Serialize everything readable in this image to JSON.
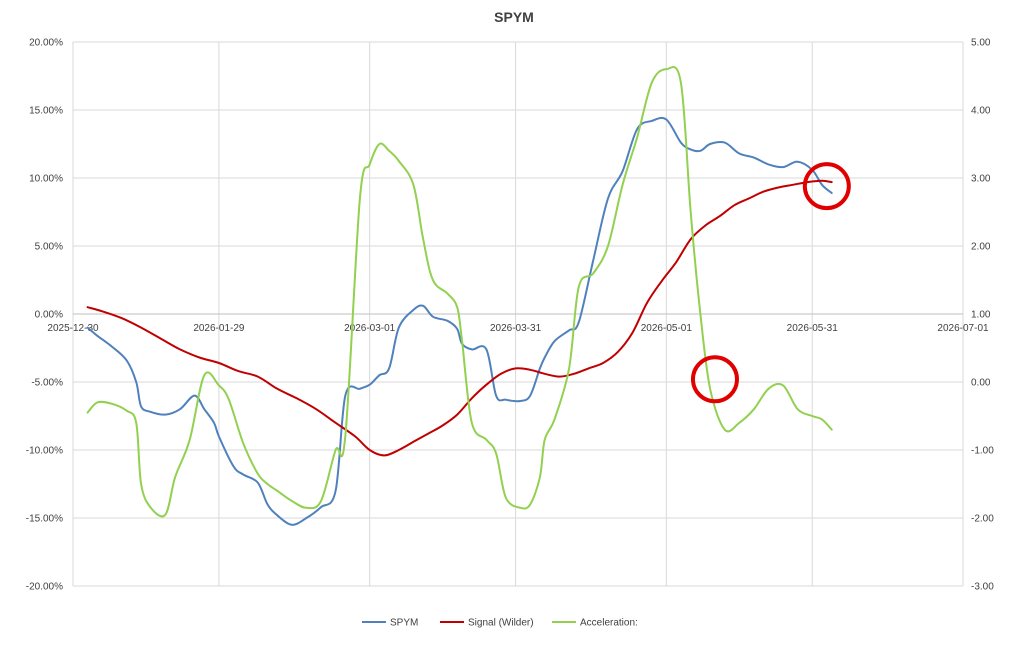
{
  "chart_data": {
    "type": "line",
    "title": "SPYM",
    "x_ticks": [
      "2025-12-30",
      "2026-01-29",
      "2026-03-01",
      "2026-03-31",
      "2026-05-01",
      "2026-05-31",
      "2026-07-01"
    ],
    "xlim": [
      "2025-12-30",
      "2026-07-01"
    ],
    "y_left": {
      "ylim": [
        -0.2,
        0.2
      ],
      "ticks": [
        "20.00%",
        "15.00%",
        "10.00%",
        "5.00%",
        "0.00%",
        "-5.00%",
        "-10.00%",
        "-15.00%",
        "-20.00%"
      ]
    },
    "y_right": {
      "ylim": [
        -3.0,
        5.0
      ],
      "ticks": [
        "5.00",
        "4.00",
        "3.00",
        "2.00",
        "1.00",
        "0.00",
        "-1.00",
        "-2.00",
        "-3.00"
      ]
    },
    "grid": "horizontal",
    "legend": "bottom",
    "series": [
      {
        "name": "SPYM",
        "axis": "left",
        "color": "#4F81BD",
        "x": [
          "2026-01-02",
          "2026-01-04",
          "2026-01-07",
          "2026-01-10",
          "2026-01-12",
          "2026-01-13",
          "2026-01-15",
          "2026-01-18",
          "2026-01-21",
          "2026-01-24",
          "2026-01-26",
          "2026-01-28",
          "2026-01-29",
          "2026-02-01",
          "2026-02-03",
          "2026-02-06",
          "2026-02-08",
          "2026-02-10",
          "2026-02-13",
          "2026-02-16",
          "2026-02-19",
          "2026-02-22",
          "2026-02-24",
          "2026-02-27",
          "2026-03-01",
          "2026-03-03",
          "2026-03-05",
          "2026-03-07",
          "2026-03-10",
          "2026-03-12",
          "2026-03-14",
          "2026-03-17",
          "2026-03-19",
          "2026-03-20",
          "2026-03-22",
          "2026-03-25",
          "2026-03-27",
          "2026-03-29",
          "2026-04-01",
          "2026-04-03",
          "2026-04-05",
          "2026-04-06",
          "2026-04-08",
          "2026-04-11",
          "2026-04-13",
          "2026-04-16",
          "2026-04-19",
          "2026-04-22",
          "2026-04-25",
          "2026-04-28",
          "2026-05-01",
          "2026-05-04",
          "2026-05-06",
          "2026-05-08",
          "2026-05-10",
          "2026-05-13",
          "2026-05-16",
          "2026-05-19",
          "2026-05-22",
          "2026-05-25",
          "2026-05-28",
          "2026-05-31",
          "2026-06-02",
          "2026-06-04"
        ],
        "values": [
          -0.01,
          -0.016,
          -0.024,
          -0.034,
          -0.05,
          -0.068,
          -0.072,
          -0.074,
          -0.07,
          -0.06,
          -0.07,
          -0.08,
          -0.09,
          -0.112,
          -0.118,
          -0.124,
          -0.14,
          -0.148,
          -0.155,
          -0.15,
          -0.142,
          -0.13,
          -0.06,
          -0.055,
          -0.052,
          -0.045,
          -0.04,
          -0.01,
          0.003,
          0.006,
          -0.002,
          -0.005,
          -0.011,
          -0.022,
          -0.026,
          -0.026,
          -0.06,
          -0.063,
          -0.064,
          -0.06,
          -0.04,
          -0.032,
          -0.02,
          -0.012,
          -0.006,
          0.04,
          0.085,
          0.105,
          0.136,
          0.142,
          0.143,
          0.126,
          0.121,
          0.12,
          0.125,
          0.126,
          0.118,
          0.115,
          0.11,
          0.108,
          0.112,
          0.106,
          0.095,
          0.089
        ]
      },
      {
        "name": "Signal (Wilder)",
        "axis": "left",
        "color": "#C00000",
        "x": [
          "2026-01-02",
          "2026-01-05",
          "2026-01-09",
          "2026-01-13",
          "2026-01-17",
          "2026-01-21",
          "2026-01-25",
          "2026-01-29",
          "2026-02-02",
          "2026-02-06",
          "2026-02-10",
          "2026-02-14",
          "2026-02-18",
          "2026-02-22",
          "2026-02-26",
          "2026-03-01",
          "2026-03-04",
          "2026-03-07",
          "2026-03-10",
          "2026-03-13",
          "2026-03-16",
          "2026-03-19",
          "2026-03-22",
          "2026-03-25",
          "2026-03-28",
          "2026-03-31",
          "2026-04-03",
          "2026-04-06",
          "2026-04-09",
          "2026-04-12",
          "2026-04-15",
          "2026-04-18",
          "2026-04-21",
          "2026-04-24",
          "2026-04-27",
          "2026-04-30",
          "2026-05-03",
          "2026-05-06",
          "2026-05-09",
          "2026-05-12",
          "2026-05-15",
          "2026-05-18",
          "2026-05-21",
          "2026-05-24",
          "2026-05-27",
          "2026-05-30",
          "2026-06-02",
          "2026-06-04"
        ],
        "values": [
          0.005,
          0.002,
          -0.003,
          -0.01,
          -0.018,
          -0.026,
          -0.032,
          -0.036,
          -0.042,
          -0.046,
          -0.055,
          -0.062,
          -0.07,
          -0.08,
          -0.09,
          -0.1,
          -0.104,
          -0.1,
          -0.094,
          -0.088,
          -0.082,
          -0.074,
          -0.062,
          -0.052,
          -0.044,
          -0.04,
          -0.041,
          -0.044,
          -0.046,
          -0.044,
          -0.04,
          -0.036,
          -0.028,
          -0.014,
          0.008,
          0.024,
          0.038,
          0.055,
          0.065,
          0.072,
          0.08,
          0.085,
          0.09,
          0.093,
          0.095,
          0.097,
          0.098,
          0.097
        ]
      },
      {
        "name": "Acceleration:",
        "axis": "right",
        "color": "#92D050",
        "x": [
          "2026-01-02",
          "2026-01-04",
          "2026-01-07",
          "2026-01-10",
          "2026-01-12",
          "2026-01-13",
          "2026-01-15",
          "2026-01-18",
          "2026-01-20",
          "2026-01-23",
          "2026-01-26",
          "2026-01-29",
          "2026-01-31",
          "2026-02-03",
          "2026-02-06",
          "2026-02-08",
          "2026-02-10",
          "2026-02-13",
          "2026-02-16",
          "2026-02-19",
          "2026-02-22",
          "2026-02-24",
          "2026-02-27",
          "2026-03-01",
          "2026-03-03",
          "2026-03-05",
          "2026-03-07",
          "2026-03-10",
          "2026-03-12",
          "2026-03-14",
          "2026-03-17",
          "2026-03-19",
          "2026-03-20",
          "2026-03-22",
          "2026-03-25",
          "2026-03-27",
          "2026-03-29",
          "2026-04-01",
          "2026-04-03",
          "2026-04-05",
          "2026-04-06",
          "2026-04-08",
          "2026-04-11",
          "2026-04-13",
          "2026-04-16",
          "2026-04-19",
          "2026-04-22",
          "2026-04-25",
          "2026-04-28",
          "2026-05-01",
          "2026-05-04",
          "2026-05-06",
          "2026-05-08",
          "2026-05-10",
          "2026-05-13",
          "2026-05-16",
          "2026-05-19",
          "2026-05-22",
          "2026-05-25",
          "2026-05-28",
          "2026-05-31",
          "2026-06-02",
          "2026-06-04"
        ],
        "values": [
          -0.45,
          -0.3,
          -0.32,
          -0.42,
          -0.6,
          -1.5,
          -1.85,
          -1.95,
          -1.4,
          -0.85,
          0.1,
          -0.05,
          -0.25,
          -0.9,
          -1.35,
          -1.5,
          -1.6,
          -1.75,
          -1.85,
          -1.75,
          -1.0,
          -0.8,
          2.7,
          3.2,
          3.5,
          3.4,
          3.25,
          2.9,
          2.1,
          1.5,
          1.3,
          1.1,
          0.6,
          -0.6,
          -0.85,
          -1.05,
          -1.7,
          -1.85,
          -1.8,
          -1.4,
          -0.85,
          -0.55,
          0.2,
          1.4,
          1.6,
          2.0,
          2.9,
          3.6,
          4.4,
          4.6,
          4.4,
          2.5,
          1.0,
          -0.1,
          -0.7,
          -0.6,
          -0.4,
          -0.1,
          -0.05,
          -0.4,
          -0.5,
          -0.55,
          -0.7
        ]
      }
    ],
    "annotations": [
      {
        "shape": "circle",
        "color": "#E00000",
        "x": "2026-06-03",
        "y": 0.094,
        "axis": "left"
      },
      {
        "shape": "circle",
        "color": "#E00000",
        "x": "2026-05-11",
        "y": -0.048,
        "axis": "left"
      }
    ]
  }
}
